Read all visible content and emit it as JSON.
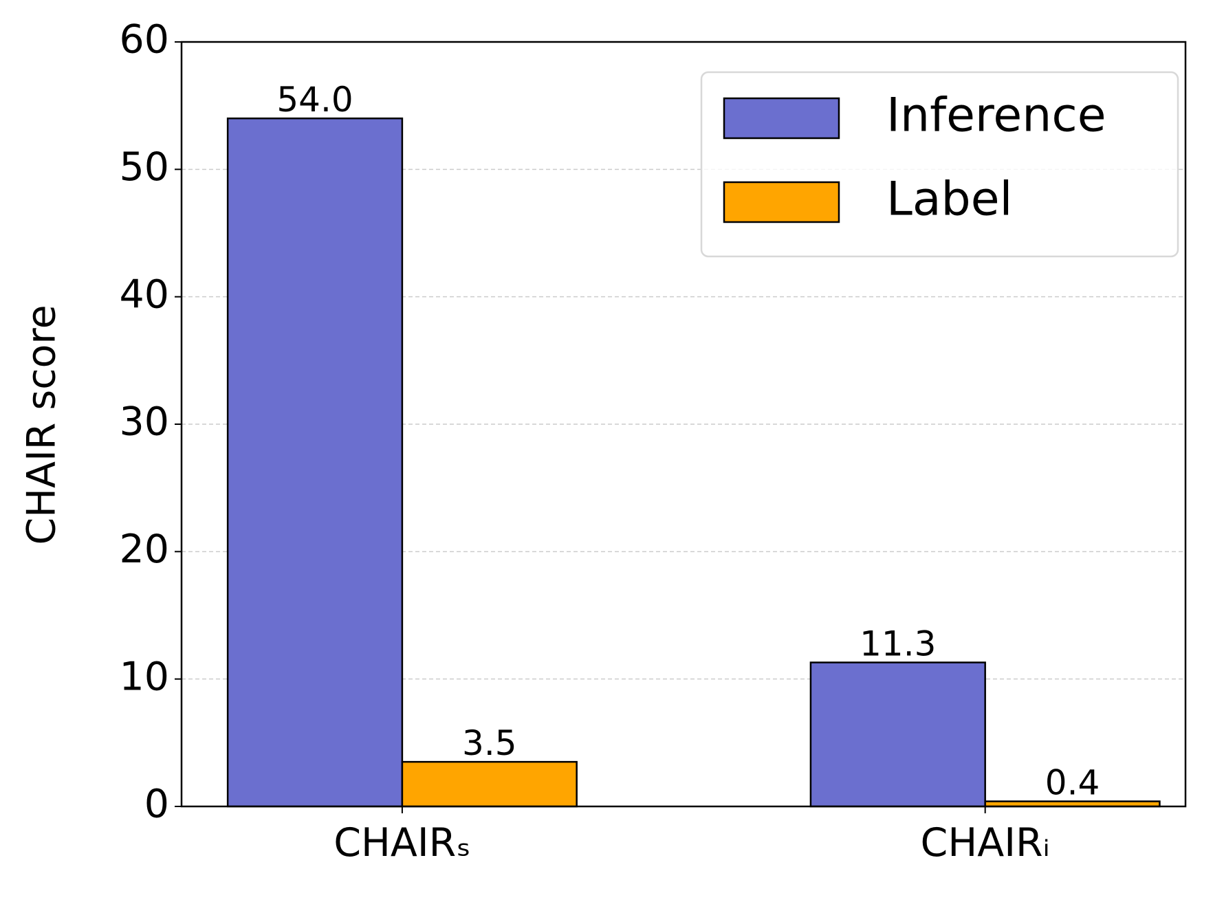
{
  "chart_data": {
    "type": "bar",
    "y_label": "CHAIR score",
    "categories": [
      "CHAIRₛ",
      "CHAIRᵢ"
    ],
    "series": [
      {
        "name": "Inference",
        "color": "#6b6fcf",
        "values": [
          54.0,
          11.3
        ],
        "value_labels": [
          "54.0",
          "11.3"
        ]
      },
      {
        "name": "Label",
        "color": "#ffa500",
        "values": [
          3.5,
          0.4
        ],
        "value_labels": [
          "3.5",
          "0.4"
        ]
      }
    ],
    "ylim": [
      0,
      60
    ],
    "yticks": [
      0,
      10,
      20,
      30,
      40,
      50,
      60
    ],
    "grid": true,
    "legend": "upper right"
  }
}
